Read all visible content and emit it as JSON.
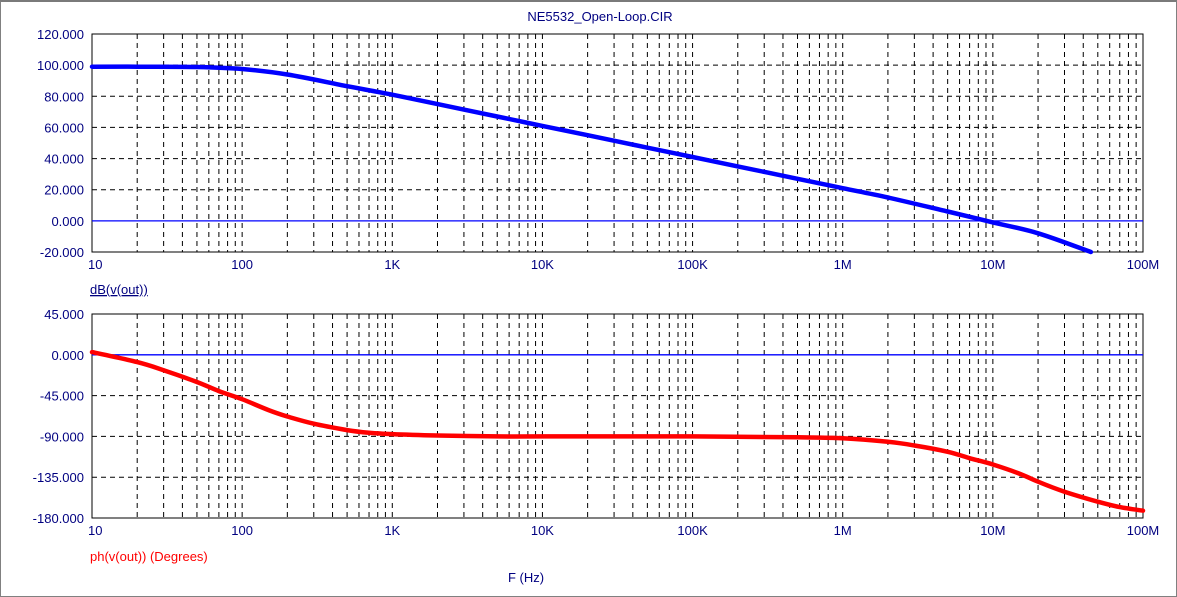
{
  "window_title": "NE5532_Open-Loop.CIR",
  "x_axis_label": "F (Hz)",
  "colors": {
    "grid": "#000000",
    "axis_text": "#000080",
    "magnitude": "#0000ff",
    "phase": "#ff0000",
    "zero_line": "#0000ff"
  },
  "chart_data": [
    {
      "type": "line",
      "name": "magnitude",
      "title": "NE5532_Open-Loop.CIR",
      "ylabel": "dB(v(out))",
      "xscale": "log",
      "xlim": [
        10,
        100000000
      ],
      "ylim": [
        -20,
        120
      ],
      "grid": true,
      "x_tick_labels": [
        "10",
        "100",
        "1K",
        "10K",
        "100K",
        "1M",
        "10M",
        "100M"
      ],
      "y_tick_labels": [
        "120.000",
        "100.000",
        "80.000",
        "60.000",
        "40.000",
        "20.000",
        "0.000",
        "-20.000"
      ],
      "y_ticks": [
        120,
        100,
        80,
        60,
        40,
        20,
        0,
        -20
      ],
      "series": [
        {
          "color": "#0000ff",
          "x": [
            10,
            20,
            50,
            100,
            200,
            500,
            1000,
            2000,
            5000,
            10000,
            20000,
            50000,
            100000,
            200000,
            500000,
            1000000,
            2000000,
            5000000,
            10000000,
            20000000,
            45000000
          ],
          "y": [
            99,
            99,
            98.8,
            97.5,
            94,
            86.5,
            81,
            75,
            67,
            61,
            55,
            47,
            41,
            35,
            27,
            21,
            15,
            6,
            -1,
            -8,
            -20
          ]
        }
      ]
    },
    {
      "type": "line",
      "name": "phase",
      "ylabel": "ph(v(out)) (Degrees)",
      "xlabel": "F (Hz)",
      "xscale": "log",
      "xlim": [
        10,
        100000000
      ],
      "ylim": [
        -180,
        45
      ],
      "grid": true,
      "x_tick_labels": [
        "10",
        "100",
        "1K",
        "10K",
        "100K",
        "1M",
        "10M",
        "100M"
      ],
      "y_tick_labels": [
        "45.000",
        "0.000",
        "-45.000",
        "-90.000",
        "-135.000",
        "-180.000"
      ],
      "y_ticks": [
        45,
        0,
        -45,
        -90,
        -135,
        -180
      ],
      "series": [
        {
          "color": "#ff0000",
          "x": [
            10,
            20,
            30,
            50,
            70,
            100,
            150,
            200,
            300,
            500,
            700,
            1000,
            2000,
            5000,
            10000,
            100000,
            500000,
            1000000,
            2000000,
            3000000,
            5000000,
            7000000,
            10000000,
            15000000,
            20000000,
            30000000,
            50000000,
            70000000,
            100000000
          ],
          "y": [
            3,
            -8,
            -17,
            -30,
            -40,
            -49,
            -61,
            -68,
            -76,
            -83,
            -86,
            -87.5,
            -89,
            -90,
            -90,
            -90,
            -91,
            -92,
            -96,
            -100,
            -107,
            -114,
            -121,
            -131,
            -140,
            -151,
            -162,
            -168,
            -172
          ]
        }
      ]
    }
  ]
}
